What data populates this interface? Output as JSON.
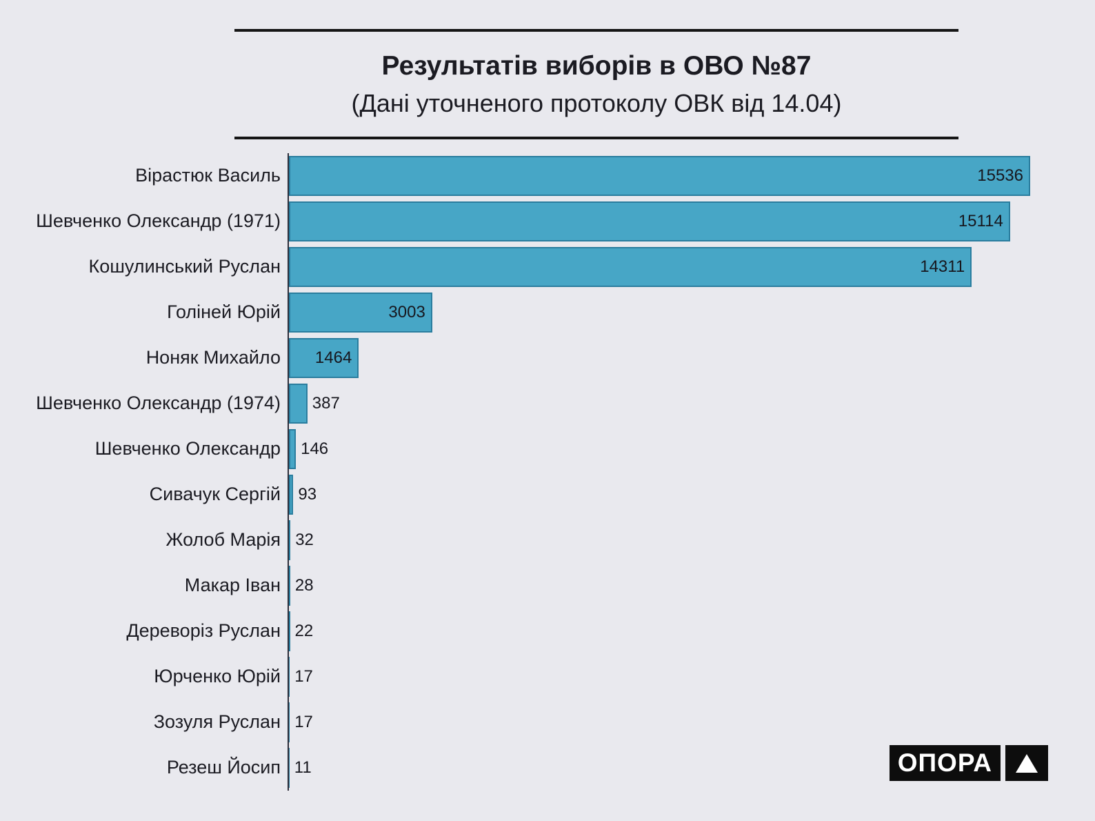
{
  "chart_data": {
    "type": "bar",
    "orientation": "horizontal",
    "title": "Результатів виборів в ОВО №87",
    "subtitle": "(Дані уточненого протоколу ОВК від 14.04)",
    "categories": [
      "Вірастюк Василь",
      "Шевченко Олександр (1971)",
      "Кошулинський Руслан",
      "Голіней Юрій",
      "Ноняк Михайло",
      "Шевченко Олександр (1974)",
      "Шевченко Олександр",
      "Сивачук Сергій",
      "Жолоб Марія",
      "Макар Іван",
      "Дереворіз Руслан",
      "Юрченко Юрій",
      "Зозуля Руслан",
      "Резеш Йосип"
    ],
    "values": [
      15536,
      15114,
      14311,
      3003,
      1464,
      387,
      146,
      93,
      32,
      28,
      22,
      17,
      17,
      11
    ],
    "xlabel": "",
    "ylabel": "",
    "xlim": [
      0,
      15536
    ],
    "grid": false,
    "legend": false,
    "value_labels": true,
    "bar_color": "#47a6c6",
    "bar_border_color": "#2a7d9e",
    "axis_color": "#2e2e3a",
    "background": "#e9e9ee"
  },
  "branding": {
    "logo_text": "ОПОРА",
    "logo_icon": "triangle-up-icon"
  }
}
